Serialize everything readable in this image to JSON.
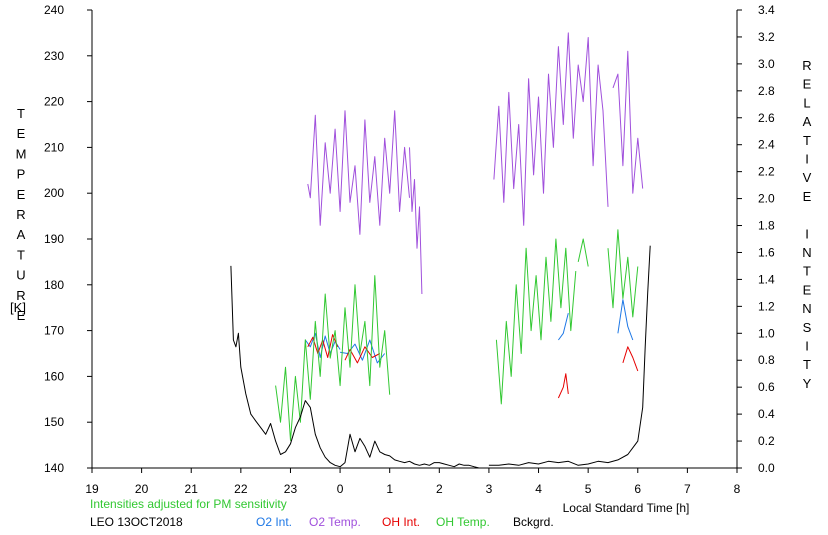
{
  "chart_data": {
    "type": "line",
    "title": "",
    "left_axis": {
      "label": "TEMPERATURE",
      "unit": "[K]",
      "min": 140,
      "max": 240,
      "ticks": [
        140,
        150,
        160,
        170,
        180,
        190,
        200,
        210,
        220,
        230,
        240
      ]
    },
    "right_axis": {
      "label": "RELATIVE INTENSITY",
      "min": 0.0,
      "max": 3.4,
      "ticks": [
        "0.0",
        "0.2",
        "0.4",
        "0.6",
        "0.8",
        "1.0",
        "1.2",
        "1.4",
        "1.6",
        "1.8",
        "2.0",
        "2.2",
        "2.4",
        "2.6",
        "2.8",
        "3.0",
        "3.2",
        "3.4"
      ]
    },
    "x_axis": {
      "label": "Local Standard Time [h]",
      "ticks": [
        "19",
        "20",
        "21",
        "22",
        "23",
        "0",
        "1",
        "2",
        "3",
        "4",
        "5",
        "6",
        "7",
        "8"
      ]
    },
    "note": "Intensities adjusted for PM sensitivity",
    "station": "LEO 13OCT2018",
    "grid": false,
    "legend_placement": "bottom",
    "series": [
      {
        "name": "O2 Int.",
        "color": "#1e78e6",
        "axis": "right",
        "segments": [
          [
            [
              23.3,
              0.95
            ],
            [
              23.4,
              0.9
            ],
            [
              23.5,
              1.0
            ],
            [
              23.6,
              0.82
            ],
            [
              23.7,
              0.98
            ],
            [
              23.8,
              0.85
            ],
            [
              23.9,
              0.94
            ],
            [
              24.0,
              0.88
            ]
          ],
          [
            [
              24.0,
              0.86
            ],
            [
              24.15,
              0.85
            ],
            [
              24.3,
              0.92
            ],
            [
              24.45,
              0.8
            ],
            [
              24.6,
              0.95
            ],
            [
              24.75,
              0.78
            ],
            [
              24.9,
              0.85
            ]
          ],
          [
            [
              28.4,
              0.95
            ],
            [
              28.5,
              1.0
            ],
            [
              28.6,
              1.15
            ]
          ],
          [
            [
              29.6,
              1.0
            ],
            [
              29.7,
              1.25
            ],
            [
              29.8,
              1.05
            ],
            [
              29.9,
              0.95
            ]
          ]
        ]
      },
      {
        "name": "O2 Temp.",
        "color": "#a050dc",
        "axis": "left",
        "segments": [
          [
            [
              23.35,
              202
            ],
            [
              23.4,
              199
            ],
            [
              23.5,
              217
            ],
            [
              23.6,
              193
            ],
            [
              23.7,
              211
            ],
            [
              23.8,
              200
            ],
            [
              23.9,
              214
            ],
            [
              24.0,
              196
            ],
            [
              24.1,
              218
            ],
            [
              24.2,
              198
            ],
            [
              24.3,
              206
            ],
            [
              24.4,
              191
            ],
            [
              24.5,
              216
            ],
            [
              24.6,
              198
            ],
            [
              24.7,
              208
            ],
            [
              24.8,
              193
            ],
            [
              24.9,
              212
            ],
            [
              25.0,
              200
            ],
            [
              25.1,
              218
            ],
            [
              25.2,
              196
            ],
            [
              25.3,
              210
            ],
            [
              25.4,
              199
            ]
          ],
          [
            [
              25.4,
              210
            ],
            [
              25.45,
              196
            ],
            [
              25.5,
              203
            ],
            [
              25.55,
              188
            ],
            [
              25.6,
              197
            ],
            [
              25.65,
              178
            ]
          ],
          [
            [
              27.1,
              203
            ],
            [
              27.2,
              219
            ],
            [
              27.3,
              198
            ],
            [
              27.4,
              222
            ],
            [
              27.5,
              201
            ],
            [
              27.6,
              215
            ],
            [
              27.7,
              193
            ],
            [
              27.8,
              225
            ],
            [
              27.9,
              204
            ],
            [
              28.0,
              221
            ],
            [
              28.1,
              200
            ],
            [
              28.2,
              226
            ],
            [
              28.3,
              210
            ],
            [
              28.4,
              232
            ],
            [
              28.5,
              215
            ],
            [
              28.6,
              235
            ],
            [
              28.7,
              212
            ],
            [
              28.8,
              228
            ],
            [
              28.9,
              220
            ],
            [
              29.0,
              234
            ],
            [
              29.1,
              206
            ],
            [
              29.2,
              228
            ],
            [
              29.3,
              218
            ],
            [
              29.4,
              197
            ]
          ],
          [
            [
              29.5,
              223
            ],
            [
              29.6,
              226
            ],
            [
              29.7,
              206
            ],
            [
              29.8,
              231
            ],
            [
              29.9,
              200
            ],
            [
              30.0,
              212
            ],
            [
              30.1,
              201
            ]
          ]
        ]
      },
      {
        "name": "OH Int.",
        "color": "#e60000",
        "axis": "right",
        "segments": [
          [
            [
              23.35,
              0.9
            ],
            [
              23.45,
              0.97
            ],
            [
              23.55,
              0.85
            ],
            [
              23.65,
              0.95
            ],
            [
              23.75,
              0.82
            ],
            [
              23.85,
              0.99
            ],
            [
              23.95,
              0.9
            ]
          ],
          [
            [
              24.1,
              0.8
            ],
            [
              24.2,
              0.88
            ],
            [
              24.35,
              0.78
            ],
            [
              24.5,
              0.9
            ],
            [
              24.65,
              0.82
            ],
            [
              24.8,
              0.85
            ]
          ],
          [
            [
              28.4,
              0.52
            ],
            [
              28.5,
              0.6
            ],
            [
              28.55,
              0.7
            ],
            [
              28.6,
              0.55
            ]
          ],
          [
            [
              29.7,
              0.78
            ],
            [
              29.8,
              0.9
            ],
            [
              29.9,
              0.82
            ],
            [
              30.0,
              0.72
            ]
          ]
        ]
      },
      {
        "name": "OH Temp.",
        "color": "#32c832",
        "axis": "left",
        "segments": [
          [
            [
              22.7,
              158
            ],
            [
              22.8,
              150
            ],
            [
              22.9,
              162
            ],
            [
              23.0,
              146
            ],
            [
              23.1,
              160
            ],
            [
              23.2,
              150
            ],
            [
              23.3,
              168
            ],
            [
              23.4,
              155
            ],
            [
              23.5,
              172
            ],
            [
              23.6,
              160
            ],
            [
              23.7,
              178
            ],
            [
              23.8,
              164
            ],
            [
              23.9,
              170
            ],
            [
              24.0,
              158
            ],
            [
              24.1,
              175
            ],
            [
              24.2,
              162
            ],
            [
              24.3,
              180
            ],
            [
              24.4,
              165
            ],
            [
              24.5,
              172
            ],
            [
              24.6,
              158
            ],
            [
              24.7,
              182
            ],
            [
              24.8,
              162
            ],
            [
              24.9,
              170
            ],
            [
              25.0,
              156
            ]
          ],
          [
            [
              27.15,
              168
            ],
            [
              27.25,
              154
            ],
            [
              27.35,
              172
            ],
            [
              27.45,
              160
            ],
            [
              27.55,
              180
            ],
            [
              27.65,
              165
            ],
            [
              27.75,
              188
            ],
            [
              27.85,
              170
            ],
            [
              27.95,
              182
            ],
            [
              28.05,
              168
            ],
            [
              28.15,
              186
            ],
            [
              28.25,
              172
            ],
            [
              28.35,
              190
            ],
            [
              28.45,
              175
            ],
            [
              28.55,
              188
            ],
            [
              28.65,
              170
            ],
            [
              28.75,
              183
            ]
          ],
          [
            [
              28.8,
              185
            ],
            [
              28.9,
              190
            ],
            [
              29.0,
              184
            ]
          ],
          [
            [
              29.4,
              188
            ],
            [
              29.5,
              175
            ],
            [
              29.6,
              192
            ],
            [
              29.7,
              177
            ],
            [
              29.8,
              186
            ],
            [
              29.9,
              173
            ],
            [
              30.0,
              184
            ]
          ]
        ]
      },
      {
        "name": "Bckgrd.",
        "color": "#000000",
        "axis": "right",
        "segments": [
          [
            [
              21.8,
              1.5
            ],
            [
              21.85,
              0.95
            ],
            [
              21.9,
              0.9
            ],
            [
              21.95,
              1.0
            ],
            [
              22.0,
              0.75
            ],
            [
              22.1,
              0.55
            ],
            [
              22.2,
              0.4
            ],
            [
              22.3,
              0.35
            ],
            [
              22.4,
              0.3
            ],
            [
              22.5,
              0.25
            ],
            [
              22.6,
              0.33
            ],
            [
              22.7,
              0.2
            ],
            [
              22.8,
              0.1
            ],
            [
              22.9,
              0.12
            ],
            [
              23.0,
              0.18
            ],
            [
              23.1,
              0.3
            ],
            [
              23.2,
              0.38
            ],
            [
              23.3,
              0.5
            ],
            [
              23.4,
              0.45
            ],
            [
              23.5,
              0.25
            ],
            [
              23.6,
              0.15
            ],
            [
              23.7,
              0.08
            ],
            [
              23.8,
              0.04
            ],
            [
              23.9,
              0.02
            ],
            [
              24.0,
              0.01
            ],
            [
              24.1,
              0.04
            ],
            [
              24.2,
              0.25
            ],
            [
              24.3,
              0.12
            ],
            [
              24.4,
              0.22
            ],
            [
              24.5,
              0.16
            ],
            [
              24.6,
              0.08
            ],
            [
              24.7,
              0.2
            ],
            [
              24.8,
              0.12
            ],
            [
              24.9,
              0.1
            ],
            [
              25.0,
              0.09
            ],
            [
              25.1,
              0.06
            ],
            [
              25.2,
              0.05
            ],
            [
              25.3,
              0.04
            ],
            [
              25.4,
              0.05
            ],
            [
              25.5,
              0.03
            ],
            [
              25.6,
              0.02
            ],
            [
              25.7,
              0.03
            ],
            [
              25.8,
              0.02
            ],
            [
              25.9,
              0.04
            ],
            [
              26.0,
              0.04
            ],
            [
              26.1,
              0.03
            ],
            [
              26.2,
              0.02
            ],
            [
              26.3,
              0.01
            ],
            [
              26.4,
              0.03
            ],
            [
              26.5,
              0.02
            ],
            [
              26.6,
              0.02
            ],
            [
              26.7,
              0.01
            ],
            [
              26.8,
              0.0
            ],
            [
              26.9,
              0.0
            ]
          ],
          [
            [
              27.0,
              0.02
            ],
            [
              27.2,
              0.02
            ],
            [
              27.4,
              0.03
            ],
            [
              27.6,
              0.02
            ],
            [
              27.8,
              0.04
            ],
            [
              28.0,
              0.03
            ],
            [
              28.2,
              0.05
            ],
            [
              28.4,
              0.04
            ],
            [
              28.6,
              0.05
            ],
            [
              28.8,
              0.02
            ],
            [
              29.0,
              0.03
            ],
            [
              29.2,
              0.05
            ],
            [
              29.4,
              0.04
            ],
            [
              29.6,
              0.06
            ],
            [
              29.8,
              0.1
            ],
            [
              30.0,
              0.2
            ],
            [
              30.1,
              0.45
            ],
            [
              30.15,
              0.9
            ],
            [
              30.2,
              1.3
            ],
            [
              30.25,
              1.65
            ]
          ]
        ]
      }
    ]
  }
}
